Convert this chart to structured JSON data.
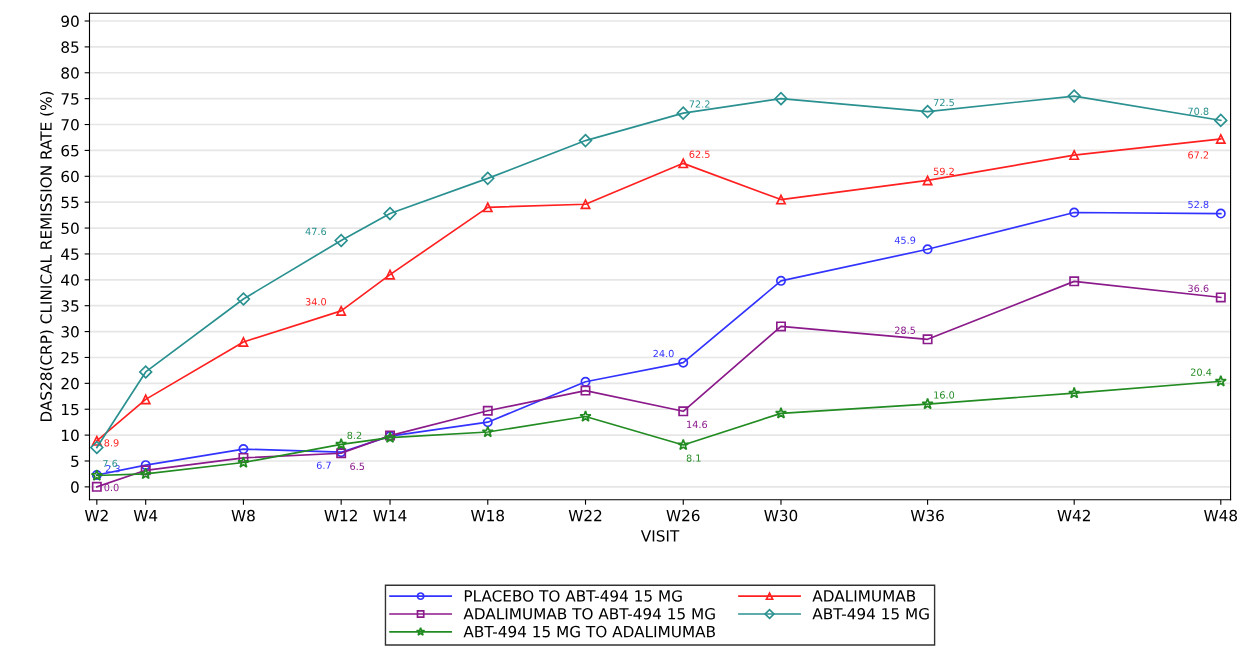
{
  "chart_data": {
    "type": "line",
    "xlabel": "VISIT",
    "ylabel": "DAS28(CRP) CLINICAL REMISSION RATE (%)",
    "categories": [
      "W2",
      "W4",
      null,
      "W8",
      null,
      "W12",
      "W14",
      null,
      "W18",
      null,
      "W22",
      null,
      "W26",
      null,
      "W30",
      null,
      null,
      "W36",
      null,
      null,
      "W42",
      null,
      null,
      "W48"
    ],
    "ylim": [
      -2.5,
      91.5
    ],
    "yticks": [
      0,
      5,
      10,
      15,
      20,
      25,
      30,
      35,
      40,
      45,
      50,
      55,
      60,
      65,
      70,
      75,
      80,
      85,
      90
    ],
    "grid": "y",
    "legend": "bottom",
    "series": [
      {
        "name": "PLACEBO TO ABT-494 15 MG",
        "color": "#3333ff",
        "marker": "circle",
        "values": [
          2.3,
          4.2,
          null,
          7.3,
          null,
          6.7,
          9.8,
          null,
          12.5,
          null,
          20.3,
          null,
          24.0,
          null,
          39.8,
          null,
          null,
          45.9,
          null,
          null,
          53.0,
          null,
          null,
          52.8
        ],
        "value_labels": [
          "2.3",
          null,
          null,
          null,
          null,
          "6.7",
          null,
          null,
          null,
          null,
          null,
          null,
          "24.0",
          null,
          null,
          null,
          null,
          "45.9",
          null,
          null,
          null,
          null,
          null,
          "52.8"
        ]
      },
      {
        "name": "ADALIMUMAB",
        "color": "#ff2020",
        "marker": "triangle",
        "values": [
          8.9,
          16.9,
          null,
          28.0,
          null,
          34.0,
          41.0,
          null,
          54.0,
          null,
          54.6,
          null,
          62.5,
          null,
          55.5,
          null,
          null,
          59.2,
          null,
          null,
          64.1,
          null,
          null,
          67.2
        ],
        "value_labels": [
          "8.9",
          null,
          null,
          null,
          null,
          "34.0",
          null,
          null,
          null,
          null,
          null,
          null,
          "62.5",
          null,
          null,
          null,
          null,
          "59.2",
          null,
          null,
          null,
          null,
          null,
          "67.2"
        ]
      },
      {
        "name": "ADALIMUMAB TO ABT-494 15 MG",
        "color": "#8b1a8b",
        "marker": "square",
        "values": [
          0.0,
          3.2,
          null,
          5.6,
          null,
          6.5,
          9.9,
          null,
          14.7,
          null,
          18.6,
          null,
          14.6,
          null,
          31.0,
          null,
          null,
          28.5,
          null,
          null,
          39.7,
          null,
          null,
          36.6
        ],
        "value_labels": [
          "0.0",
          null,
          null,
          null,
          null,
          "6.5",
          null,
          null,
          null,
          null,
          null,
          null,
          "14.6",
          null,
          null,
          null,
          null,
          "28.5",
          null,
          null,
          null,
          null,
          null,
          "36.6"
        ]
      },
      {
        "name": "ABT-494 15 MG",
        "color": "#2a9090",
        "marker": "diamond",
        "values": [
          7.6,
          22.2,
          null,
          36.3,
          null,
          47.6,
          52.8,
          null,
          59.6,
          null,
          66.9,
          null,
          72.2,
          null,
          75.0,
          null,
          null,
          72.5,
          null,
          null,
          75.5,
          null,
          null,
          70.8
        ],
        "value_labels": [
          "7.6",
          null,
          null,
          null,
          null,
          "47.6",
          null,
          null,
          null,
          null,
          null,
          null,
          "72.2",
          null,
          null,
          null,
          null,
          "72.5",
          null,
          null,
          null,
          null,
          null,
          "70.8"
        ]
      },
      {
        "name": "ABT-494 15 MG TO ADALIMUMAB",
        "color": "#228b22",
        "marker": "star",
        "values": [
          2.2,
          2.5,
          null,
          4.7,
          null,
          8.2,
          9.5,
          null,
          10.6,
          null,
          13.6,
          null,
          8.1,
          null,
          14.2,
          null,
          null,
          16.0,
          null,
          null,
          18.1,
          null,
          null,
          20.4
        ],
        "value_labels": [
          null,
          null,
          null,
          null,
          null,
          "8.2",
          null,
          null,
          null,
          null,
          null,
          null,
          "8.1",
          null,
          null,
          null,
          null,
          "16.0",
          null,
          null,
          null,
          null,
          null,
          "20.4"
        ]
      }
    ]
  }
}
